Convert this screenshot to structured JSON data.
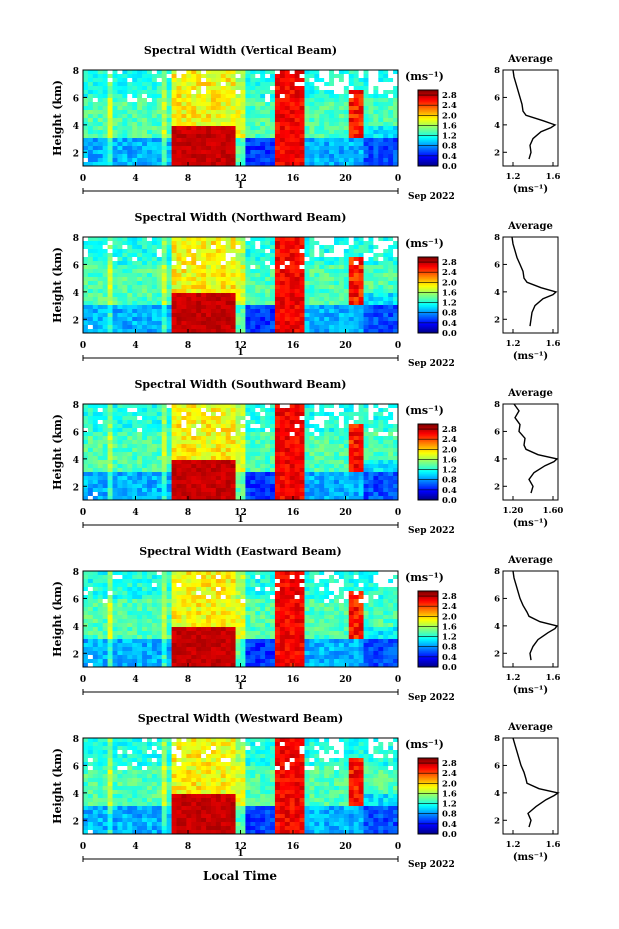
{
  "figure": {
    "xlabel": "Local Time",
    "colorbar_unit": "(ms⁻¹)",
    "date_label": "Sep 2022",
    "day_label": "1",
    "avg_title": "Average",
    "avg_xlabel": "(ms⁻¹)"
  },
  "chart_data": [
    {
      "type": "heatmap",
      "title": "Spectral Width (Vertical Beam)",
      "xlabel": "",
      "ylabel": "Height (km)",
      "x_ticks": [
        "0",
        "4",
        "8",
        "12",
        "16",
        "20",
        "0"
      ],
      "y_ticks": [
        "2",
        "4",
        "6",
        "8"
      ],
      "xlim": [
        0,
        24
      ],
      "ylim": [
        1,
        8
      ],
      "colorbar": {
        "ticks": [
          "0.0",
          "0.4",
          "0.8",
          "1.2",
          "1.6",
          "2.0",
          "2.4",
          "2.8"
        ],
        "range": [
          0,
          3.0
        ]
      },
      "average": {
        "title": "Average",
        "xlabel": "(ms⁻¹)",
        "x_ticks": [
          "1.2",
          "1.6"
        ],
        "y_ticks": [
          "2",
          "4",
          "6",
          "8"
        ],
        "xlim": [
          1.1,
          1.65
        ],
        "ylim": [
          1,
          8
        ],
        "heights": [
          1.5,
          2.0,
          2.5,
          3.0,
          3.5,
          3.8,
          4.0,
          4.3,
          4.7,
          5.0,
          5.5,
          6.0,
          6.5,
          7.0,
          7.5,
          8.0
        ],
        "values": [
          1.36,
          1.38,
          1.37,
          1.4,
          1.48,
          1.58,
          1.62,
          1.5,
          1.33,
          1.3,
          1.29,
          1.27,
          1.25,
          1.23,
          1.21,
          1.2
        ]
      }
    },
    {
      "type": "heatmap",
      "title": "Spectral Width (Northward Beam)",
      "xlabel": "",
      "ylabel": "Height (km)",
      "x_ticks": [
        "0",
        "4",
        "8",
        "12",
        "16",
        "20",
        "0"
      ],
      "y_ticks": [
        "2",
        "4",
        "6",
        "8"
      ],
      "xlim": [
        0,
        24
      ],
      "ylim": [
        1,
        8
      ],
      "colorbar": {
        "ticks": [
          "0.0",
          "0.4",
          "0.8",
          "1.2",
          "1.6",
          "2.0",
          "2.4",
          "2.8"
        ],
        "range": [
          0,
          3.0
        ]
      },
      "average": {
        "title": "Average",
        "xlabel": "(ms⁻¹)",
        "x_ticks": [
          "1.2",
          "1.6"
        ],
        "y_ticks": [
          "2",
          "4",
          "6",
          "8"
        ],
        "xlim": [
          1.1,
          1.65
        ],
        "ylim": [
          1,
          8
        ],
        "heights": [
          1.5,
          2.0,
          2.5,
          3.0,
          3.5,
          3.8,
          4.0,
          4.3,
          4.7,
          5.0,
          5.5,
          6.0,
          6.5,
          7.0,
          7.5,
          8.0
        ],
        "values": [
          1.37,
          1.38,
          1.39,
          1.42,
          1.5,
          1.6,
          1.63,
          1.48,
          1.34,
          1.31,
          1.3,
          1.27,
          1.24,
          1.22,
          1.2,
          1.19
        ]
      }
    },
    {
      "type": "heatmap",
      "title": "Spectral Width (Southward Beam)",
      "xlabel": "",
      "ylabel": "Height (km)",
      "x_ticks": [
        "0",
        "4",
        "8",
        "12",
        "16",
        "20",
        "0"
      ],
      "y_ticks": [
        "2",
        "4",
        "6",
        "8"
      ],
      "xlim": [
        0,
        24
      ],
      "ylim": [
        1,
        8
      ],
      "colorbar": {
        "ticks": [
          "0.0",
          "0.4",
          "0.8",
          "1.2",
          "1.6",
          "2.0",
          "2.4",
          "2.8"
        ],
        "range": [
          0,
          3.0
        ]
      },
      "average": {
        "title": "Average",
        "xlabel": "(ms⁻¹)",
        "x_ticks": [
          "1.20",
          "1.60"
        ],
        "y_ticks": [
          "2",
          "4",
          "6",
          "8"
        ],
        "xlim": [
          1.1,
          1.65
        ],
        "ylim": [
          1,
          8
        ],
        "heights": [
          1.5,
          2.0,
          2.5,
          3.0,
          3.5,
          3.8,
          4.0,
          4.3,
          4.7,
          5.0,
          5.5,
          6.0,
          6.5,
          7.0,
          7.5,
          8.0
        ],
        "values": [
          1.38,
          1.4,
          1.36,
          1.41,
          1.52,
          1.61,
          1.64,
          1.45,
          1.33,
          1.31,
          1.32,
          1.26,
          1.27,
          1.22,
          1.26,
          1.21
        ]
      }
    },
    {
      "type": "heatmap",
      "title": "Spectral Width (Eastward Beam)",
      "xlabel": "",
      "ylabel": "Height (km)",
      "x_ticks": [
        "0",
        "4",
        "8",
        "12",
        "16",
        "20",
        "0"
      ],
      "y_ticks": [
        "2",
        "4",
        "6",
        "8"
      ],
      "xlim": [
        0,
        24
      ],
      "ylim": [
        1,
        8
      ],
      "colorbar": {
        "ticks": [
          "0.0",
          "0.4",
          "0.8",
          "1.2",
          "1.6",
          "2.0",
          "2.4",
          "2.8"
        ],
        "range": [
          0,
          3.0
        ]
      },
      "average": {
        "title": "Average",
        "xlabel": "(ms⁻¹)",
        "x_ticks": [
          "1.2",
          "1.6"
        ],
        "y_ticks": [
          "2",
          "4",
          "6",
          "8"
        ],
        "xlim": [
          1.1,
          1.65
        ],
        "ylim": [
          1,
          8
        ],
        "heights": [
          1.5,
          2.0,
          2.5,
          3.0,
          3.5,
          3.8,
          4.0,
          4.3,
          4.7,
          5.0,
          5.5,
          6.0,
          6.5,
          7.0,
          7.5,
          8.0
        ],
        "values": [
          1.38,
          1.37,
          1.4,
          1.45,
          1.55,
          1.62,
          1.64,
          1.47,
          1.36,
          1.34,
          1.3,
          1.27,
          1.25,
          1.23,
          1.21,
          1.2
        ]
      }
    },
    {
      "type": "heatmap",
      "title": "Spectral Width (Westward Beam)",
      "xlabel": "",
      "ylabel": "Height (km)",
      "x_ticks": [
        "0",
        "4",
        "8",
        "12",
        "16",
        "20",
        "0"
      ],
      "y_ticks": [
        "2",
        "4",
        "6",
        "8"
      ],
      "xlim": [
        0,
        24
      ],
      "ylim": [
        1,
        8
      ],
      "colorbar": {
        "ticks": [
          "0.0",
          "0.4",
          "0.8",
          "1.2",
          "1.6",
          "2.0",
          "2.4",
          "2.8"
        ],
        "range": [
          0,
          3.0
        ]
      },
      "average": {
        "title": "Average",
        "xlabel": "(ms⁻¹)",
        "x_ticks": [
          "1.2",
          "1.6"
        ],
        "y_ticks": [
          "2",
          "4",
          "6",
          "8"
        ],
        "xlim": [
          1.1,
          1.65
        ],
        "ylim": [
          1,
          8
        ],
        "heights": [
          1.5,
          2.0,
          2.5,
          3.0,
          3.5,
          3.8,
          4.0,
          4.3,
          4.7,
          5.0,
          5.5,
          6.0,
          6.5,
          7.0,
          7.5,
          8.0
        ],
        "values": [
          1.36,
          1.38,
          1.35,
          1.43,
          1.53,
          1.61,
          1.65,
          1.46,
          1.34,
          1.33,
          1.31,
          1.28,
          1.26,
          1.24,
          1.22,
          1.2
        ]
      }
    }
  ]
}
